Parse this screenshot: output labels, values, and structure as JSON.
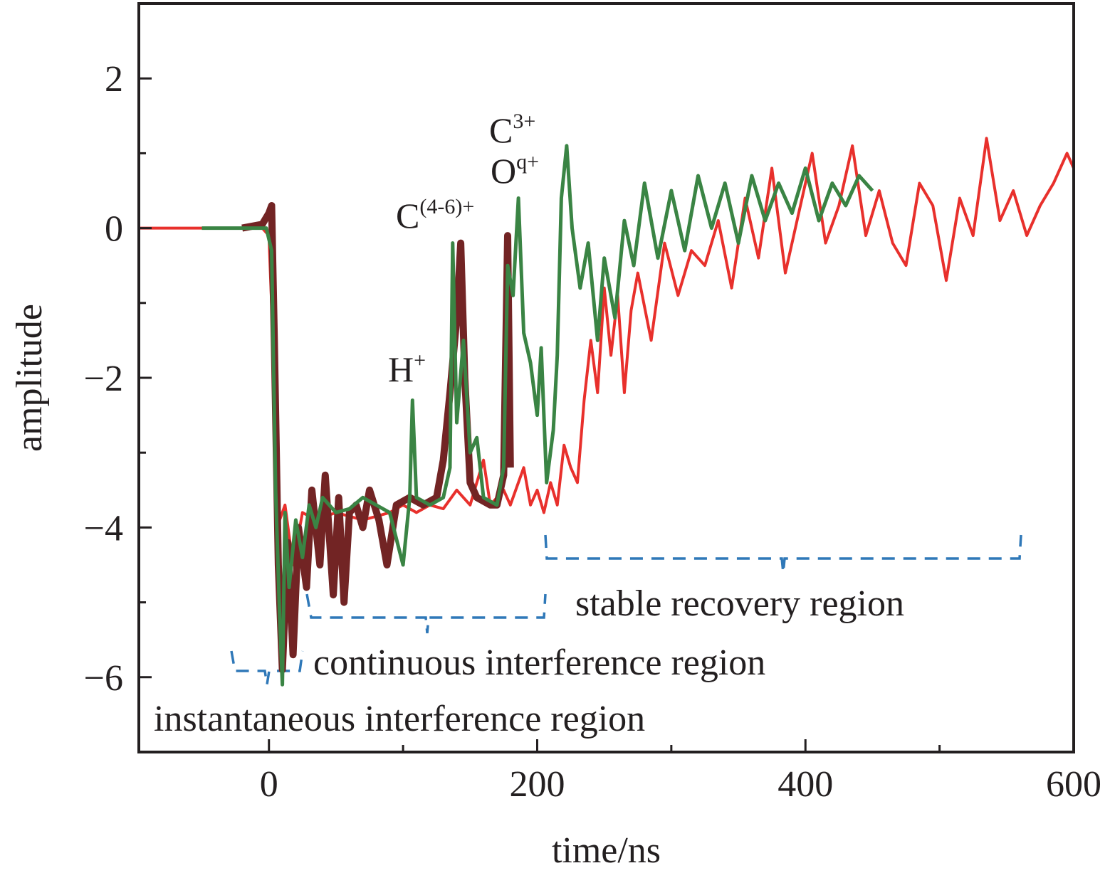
{
  "chart_data": {
    "type": "line",
    "xlabel": "time/ns",
    "ylabel": "amplitude",
    "xlim": [
      -97,
      600
    ],
    "ylim": [
      -7,
      3
    ],
    "xticks": [
      0,
      200,
      400,
      600
    ],
    "xminorticks": [
      100,
      300,
      500
    ],
    "yticks": [
      {
        "value": -6,
        "label": "−6"
      },
      {
        "value": -4,
        "label": "−4"
      },
      {
        "value": -2,
        "label": "−2"
      },
      0,
      2
    ],
    "yminorticks": [
      -7,
      -5,
      -3,
      -1,
      1
    ],
    "series": [
      {
        "color": "#e8302c",
        "width": 4,
        "x": [
          -97,
          -80,
          -60,
          -40,
          -20,
          -5,
          0,
          3,
          5,
          8,
          12,
          18,
          25,
          35,
          50,
          70,
          90,
          100,
          110,
          120,
          130,
          140,
          150,
          160,
          165,
          175,
          180,
          190,
          195,
          200,
          205,
          210,
          215,
          220,
          225,
          230,
          235,
          240,
          245,
          250,
          255,
          260,
          265,
          270,
          275,
          285,
          295,
          305,
          315,
          325,
          335,
          345,
          355,
          365,
          375,
          385,
          395,
          405,
          415,
          425,
          435,
          445,
          455,
          465,
          475,
          485,
          495,
          505,
          515,
          525,
          535,
          545,
          555,
          565,
          575,
          585,
          595,
          600
        ],
        "values": [
          0,
          0,
          0,
          0,
          0,
          0,
          -0.1,
          -1.5,
          -3.5,
          -3.9,
          -3.7,
          -4.5,
          -3.8,
          -3.9,
          -3.8,
          -3.9,
          -3.8,
          -3.7,
          -3.8,
          -3.7,
          -3.75,
          -3.5,
          -3.7,
          -3.1,
          -3.7,
          -3.5,
          -3.7,
          -3.2,
          -3.7,
          -3.5,
          -3.8,
          -3.4,
          -3.7,
          -2.9,
          -3.2,
          -3.4,
          -2.3,
          -1.5,
          -2.2,
          -0.8,
          -1.7,
          -0.9,
          -2.2,
          -1.1,
          -0.6,
          -1.5,
          -0.2,
          -0.9,
          -0.3,
          -0.5,
          0.1,
          -0.8,
          0.4,
          -0.4,
          0.8,
          -0.6,
          0.2,
          1.0,
          -0.2,
          0.3,
          1.1,
          -0.1,
          0.5,
          -0.2,
          -0.5,
          0.6,
          0.3,
          -0.7,
          0.4,
          -0.1,
          1.2,
          0.1,
          0.5,
          -0.1,
          0.3,
          0.6,
          1.0,
          0.8
        ]
      },
      {
        "color": "#722424",
        "width": 10,
        "x": [
          -20,
          -5,
          0,
          2,
          4,
          7,
          10,
          14,
          18,
          22,
          28,
          32,
          38,
          42,
          48,
          52,
          56,
          60,
          65,
          70,
          75,
          82,
          88,
          95,
          105,
          115,
          125,
          130,
          135,
          140,
          143,
          146,
          150,
          155,
          165,
          170,
          175,
          178,
          180
        ],
        "values": [
          0,
          0.05,
          0.2,
          0.3,
          -1.5,
          -4.5,
          -5.9,
          -4.2,
          -5.7,
          -4,
          -4.8,
          -3.5,
          -4.5,
          -3.3,
          -4.9,
          -3.6,
          -5.0,
          -3.8,
          -3.7,
          -4.0,
          -3.5,
          -3.9,
          -4.5,
          -3.7,
          -3.6,
          -3.7,
          -3.6,
          -3.1,
          -2.2,
          -1.2,
          -0.2,
          -2.0,
          -3.4,
          -3.6,
          -3.7,
          -3.7,
          -3.3,
          -0.1,
          -3.2
        ]
      },
      {
        "color": "#3a8444",
        "width": 5,
        "x": [
          -50,
          -20,
          -2,
          2,
          5,
          8,
          10,
          12,
          15,
          20,
          25,
          30,
          35,
          40,
          50,
          60,
          70,
          80,
          90,
          100,
          105,
          107,
          110,
          120,
          130,
          135,
          137,
          140,
          145,
          150,
          155,
          160,
          170,
          175,
          178,
          182,
          186,
          190,
          195,
          200,
          203,
          207,
          212,
          215,
          218,
          222,
          226,
          232,
          238,
          245,
          250,
          258,
          265,
          272,
          280,
          290,
          300,
          310,
          320,
          330,
          340,
          350,
          360,
          370,
          380,
          390,
          400,
          410,
          420,
          430,
          440,
          450
        ],
        "values": [
          0,
          0,
          0,
          -0.3,
          -3.5,
          -5.2,
          -6.1,
          -3.8,
          -4.8,
          -3.9,
          -4.4,
          -3.7,
          -4.0,
          -3.6,
          -3.8,
          -3.75,
          -3.6,
          -3.7,
          -3.8,
          -4.5,
          -3.6,
          -2.3,
          -3.6,
          -3.7,
          -3.6,
          -3.2,
          -0.2,
          -2.6,
          -1.5,
          -3.0,
          -2.8,
          -3.6,
          -3.7,
          -3.2,
          -0.5,
          -0.9,
          0.4,
          -1.4,
          -1.8,
          -2.5,
          -1.6,
          -3.4,
          -2.7,
          -1.7,
          0.4,
          1.1,
          0.0,
          -0.8,
          -0.2,
          -1.5,
          -0.4,
          -1.2,
          0.1,
          -0.5,
          0.6,
          -0.4,
          0.5,
          -0.3,
          0.7,
          0.0,
          0.6,
          -0.2,
          0.7,
          0.1,
          0.6,
          0.2,
          0.8,
          0.1,
          0.6,
          0.3,
          0.7,
          0.5
        ]
      }
    ],
    "annotations": [
      {
        "text": "H",
        "sup": "+"
      },
      {
        "text": "C",
        "sup": "(4-6)+"
      },
      {
        "text": "C",
        "sup": "3+"
      },
      {
        "text": "O",
        "sup": "q+"
      }
    ],
    "regions": [
      "stable recovery region",
      "continuous interference region",
      "instantaneous interference region"
    ]
  }
}
